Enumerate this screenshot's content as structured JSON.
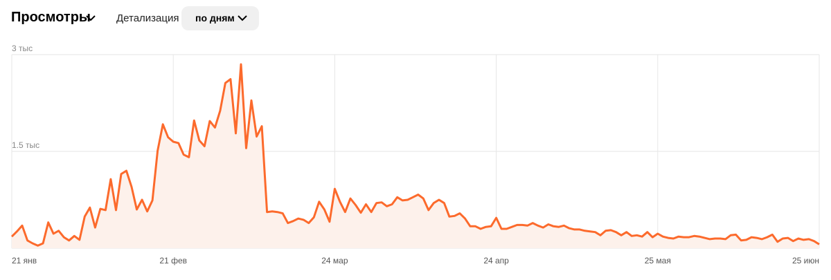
{
  "header": {
    "title": "Просмотры",
    "detail_label": "Детализация",
    "period_button": "по дням"
  },
  "chart_data": {
    "type": "line",
    "color": "#fc6a2c",
    "fill": "#fdf1eb",
    "categories": [
      "21 янв",
      null,
      null,
      null,
      null,
      null,
      null,
      null,
      null,
      null,
      null,
      null,
      null,
      null,
      null,
      null,
      null,
      null,
      null,
      null,
      null,
      null,
      null,
      null,
      null,
      null,
      null,
      null,
      null,
      null,
      null,
      "21 фев",
      null,
      null,
      null,
      null,
      null,
      null,
      null,
      null,
      null,
      null,
      null,
      null,
      null,
      null,
      null,
      null,
      null,
      null,
      null,
      null,
      null,
      null,
      null,
      null,
      null,
      null,
      null,
      null,
      null,
      null,
      "24 мар",
      null,
      null,
      null,
      null,
      null,
      null,
      null,
      null,
      null,
      null,
      null,
      null,
      null,
      null,
      null,
      null,
      null,
      null,
      null,
      null,
      null,
      null,
      null,
      null,
      null,
      null,
      null,
      null,
      null,
      null,
      "24 апр",
      null,
      null,
      null,
      null,
      null,
      null,
      null,
      null,
      null,
      null,
      null,
      null,
      null,
      null,
      null,
      null,
      null,
      null,
      null,
      null,
      null,
      null,
      null,
      null,
      null,
      null,
      null,
      null,
      null,
      null,
      "25 мая",
      null,
      null,
      null,
      null,
      null,
      null,
      null,
      null,
      null,
      null,
      null,
      null,
      null,
      null,
      null,
      null,
      null,
      null,
      null,
      null,
      null,
      null,
      null,
      null,
      null,
      null,
      null,
      null,
      null,
      null,
      "25 июн"
    ],
    "values": [
      180,
      260,
      350,
      120,
      75,
      40,
      75,
      400,
      225,
      270,
      170,
      120,
      190,
      130,
      490,
      630,
      320,
      610,
      590,
      1070,
      590,
      1150,
      1200,
      950,
      600,
      750,
      570,
      740,
      1510,
      1920,
      1720,
      1650,
      1630,
      1450,
      1410,
      1980,
      1670,
      1580,
      1970,
      1870,
      2130,
      2560,
      2620,
      1780,
      2850,
      1550,
      2290,
      1730,
      1890,
      560,
      570,
      560,
      540,
      390,
      420,
      460,
      440,
      390,
      480,
      720,
      600,
      410,
      920,
      720,
      560,
      770,
      670,
      550,
      680,
      560,
      700,
      710,
      650,
      680,
      790,
      740,
      750,
      790,
      830,
      770,
      590,
      700,
      750,
      700,
      490,
      500,
      540,
      460,
      340,
      340,
      300,
      330,
      340,
      470,
      300,
      300,
      330,
      360,
      360,
      350,
      390,
      350,
      320,
      370,
      340,
      330,
      350,
      310,
      290,
      290,
      270,
      260,
      250,
      200,
      270,
      280,
      250,
      200,
      250,
      190,
      200,
      180,
      250,
      170,
      225,
      180,
      160,
      150,
      180,
      170,
      170,
      190,
      180,
      160,
      140,
      150,
      150,
      140,
      200,
      210,
      120,
      130,
      170,
      160,
      140,
      170,
      210,
      100,
      150,
      160,
      110,
      150,
      130,
      140,
      110,
      60
    ],
    "ylim": [
      0,
      3000
    ],
    "yticks": [
      0,
      {
        "value": 1500,
        "label": "1.5 тыс"
      },
      {
        "value": 3000,
        "label": "3 тыс"
      }
    ],
    "grid": true
  }
}
